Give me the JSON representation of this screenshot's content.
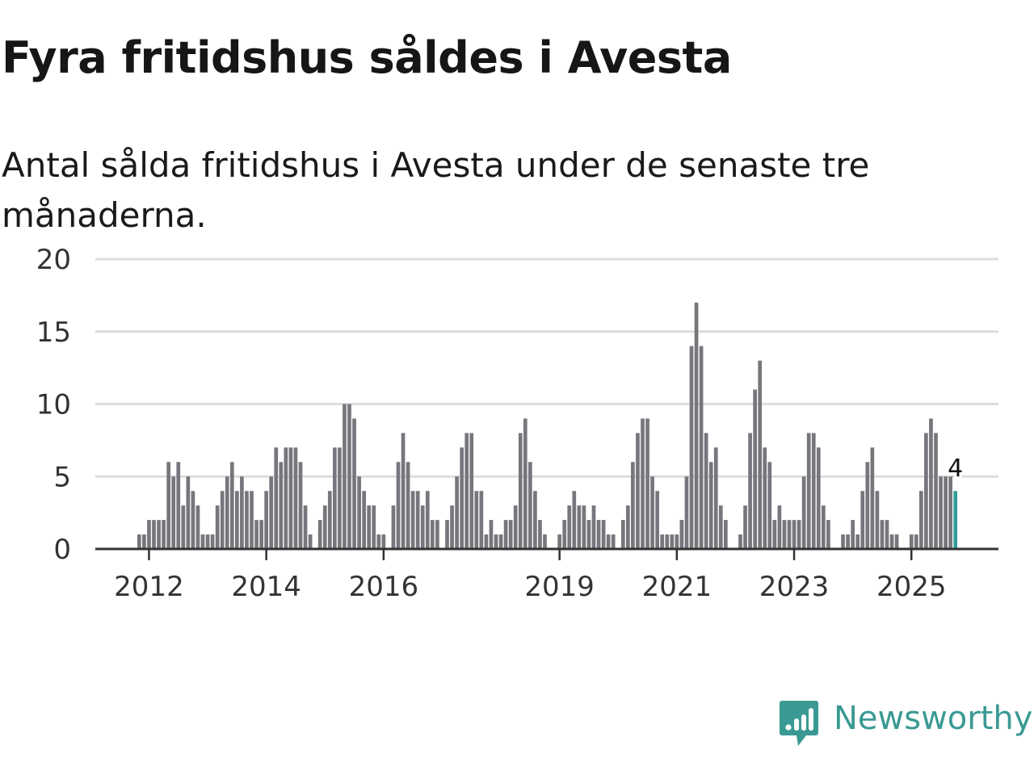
{
  "header": {
    "title": "Fyra fritidshus såldes i Avesta",
    "subtitle": "Antal sålda fritidshus i Avesta under de senaste tre månaderna."
  },
  "brand": {
    "name": "Newsworthy",
    "icon": "newsworthy-logo-icon",
    "color": "#3a9a93"
  },
  "colors": {
    "bar": "#77767c",
    "highlight": "#2f9e98",
    "grid": "#dddddd",
    "axis": "#333333"
  },
  "chart_data": {
    "type": "bar",
    "x_axis": "monthly time series, earliest month 2011-11, latest 2025-10",
    "start": "2011-11",
    "xticks": [
      "2012",
      "2014",
      "2016",
      "2019",
      "2021",
      "2023",
      "2025"
    ],
    "yticks": [
      "0",
      "5",
      "10",
      "15",
      "20"
    ],
    "ylim": [
      0,
      20
    ],
    "grid": true,
    "highlight_last": true,
    "last_label": "4",
    "values": [
      1,
      1,
      2,
      2,
      2,
      2,
      6,
      5,
      6,
      3,
      5,
      4,
      3,
      1,
      1,
      1,
      3,
      4,
      5,
      6,
      4,
      5,
      4,
      4,
      2,
      2,
      4,
      5,
      7,
      6,
      7,
      7,
      7,
      6,
      3,
      1,
      0,
      2,
      3,
      4,
      7,
      7,
      10,
      10,
      9,
      5,
      4,
      3,
      3,
      1,
      1,
      0,
      3,
      6,
      8,
      6,
      4,
      4,
      3,
      4,
      2,
      2,
      0,
      2,
      3,
      5,
      7,
      8,
      8,
      4,
      4,
      1,
      2,
      1,
      1,
      2,
      2,
      3,
      8,
      9,
      6,
      4,
      2,
      1,
      0,
      0,
      1,
      2,
      3,
      4,
      3,
      3,
      2,
      3,
      2,
      2,
      1,
      1,
      0,
      2,
      3,
      6,
      8,
      9,
      9,
      5,
      4,
      1,
      1,
      1,
      1,
      2,
      5,
      14,
      17,
      14,
      8,
      6,
      7,
      3,
      2,
      0,
      0,
      1,
      3,
      8,
      11,
      13,
      7,
      6,
      2,
      3,
      2,
      2,
      2,
      2,
      5,
      8,
      8,
      7,
      3,
      2,
      0,
      0,
      1,
      1,
      2,
      1,
      4,
      6,
      7,
      4,
      2,
      2,
      1,
      1,
      0,
      0,
      1,
      1,
      4,
      8,
      9,
      8,
      5,
      5,
      5,
      4
    ]
  }
}
